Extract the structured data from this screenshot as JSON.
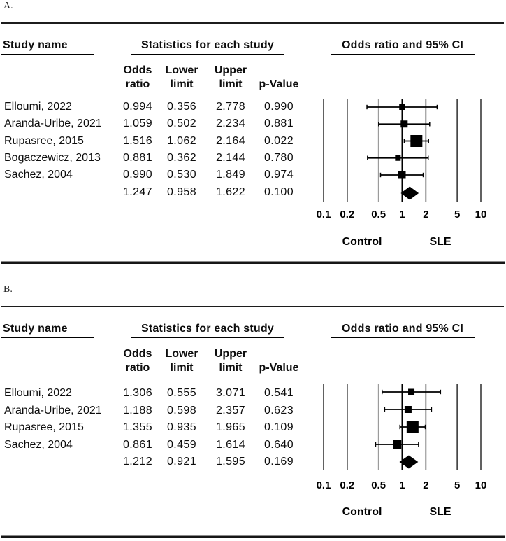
{
  "colors": {
    "ink": "#000000",
    "grid": "#3a3a3a",
    "grid_light": "#9b9b9b",
    "rule": "#161616",
    "background": "#ffffff"
  },
  "chart_data": [
    {
      "type": "forest",
      "panel_label": "A.",
      "title_left": "Study name",
      "title_stats": "Statistics for each study",
      "title_plot": "Odds ratio and 95% CI",
      "columns": [
        {
          "line1": "Odds",
          "line2": "ratio"
        },
        {
          "line1": "Lower",
          "line2": "limit"
        },
        {
          "line1": "Upper",
          "line2": "limit"
        },
        {
          "line1": "",
          "line2": "p-Value"
        }
      ],
      "x_scale": "log10",
      "x_range": [
        0.1,
        10
      ],
      "x_ticks": [
        0.1,
        0.2,
        0.5,
        1,
        2,
        5,
        10
      ],
      "group_labels": {
        "left": "Control",
        "right": "SLE"
      },
      "studies": [
        {
          "name": "Elloumi, 2022",
          "odds_ratio": 0.994,
          "lower": 0.356,
          "upper": 2.778,
          "p": 0.99,
          "size": 8
        },
        {
          "name": "Aranda-Uribe, 2021",
          "odds_ratio": 1.059,
          "lower": 0.502,
          "upper": 2.234,
          "p": 0.881,
          "size": 10
        },
        {
          "name": "Rupasree, 2015",
          "odds_ratio": 1.516,
          "lower": 1.062,
          "upper": 2.164,
          "p": 0.022,
          "size": 17
        },
        {
          "name": "Bogaczewicz, 2013",
          "odds_ratio": 0.881,
          "lower": 0.362,
          "upper": 2.144,
          "p": 0.78,
          "size": 8
        },
        {
          "name": "Sachez, 2004",
          "odds_ratio": 0.99,
          "lower": 0.53,
          "upper": 1.849,
          "p": 0.974,
          "size": 11
        }
      ],
      "overall": {
        "odds_ratio": 1.247,
        "lower": 0.958,
        "upper": 1.622,
        "p": 0.1
      }
    },
    {
      "type": "forest",
      "panel_label": "B.",
      "title_left": "Study name",
      "title_stats": "Statistics for each study",
      "title_plot": "Odds ratio and 95% CI",
      "columns": [
        {
          "line1": "Odds",
          "line2": "ratio"
        },
        {
          "line1": "Lower",
          "line2": "limit"
        },
        {
          "line1": "Upper",
          "line2": "limit"
        },
        {
          "line1": "",
          "line2": "p-Value"
        }
      ],
      "x_scale": "log10",
      "x_range": [
        0.1,
        10
      ],
      "x_ticks": [
        0.1,
        0.2,
        0.5,
        1,
        2,
        5,
        10
      ],
      "group_labels": {
        "left": "Control",
        "right": "SLE"
      },
      "studies": [
        {
          "name": "Elloumi, 2022",
          "odds_ratio": 1.306,
          "lower": 0.555,
          "upper": 3.071,
          "p": 0.541,
          "size": 9
        },
        {
          "name": "Aranda-Uribe, 2021",
          "odds_ratio": 1.188,
          "lower": 0.598,
          "upper": 2.357,
          "p": 0.623,
          "size": 10
        },
        {
          "name": "Rupasree, 2015",
          "odds_ratio": 1.355,
          "lower": 0.935,
          "upper": 1.965,
          "p": 0.109,
          "size": 17
        },
        {
          "name": "Sachez, 2004",
          "odds_ratio": 0.861,
          "lower": 0.459,
          "upper": 1.614,
          "p": 0.64,
          "size": 12
        }
      ],
      "overall": {
        "odds_ratio": 1.212,
        "lower": 0.921,
        "upper": 1.595,
        "p": 0.169
      }
    }
  ]
}
